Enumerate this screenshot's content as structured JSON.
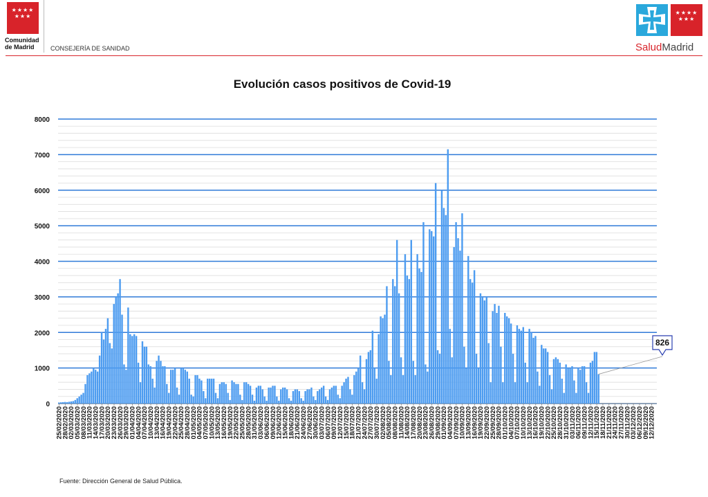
{
  "header": {
    "left_logo_stars": "★★★★\n★★★",
    "left_logo_text_line1": "Comunidad",
    "left_logo_text_line2": "de Madrid",
    "department": "CONSEJERÍA DE SANIDAD",
    "right_logo_part1": "Salud",
    "right_logo_part2": "Madrid",
    "brand_red": "#d8232a",
    "brand_blue": "#2aa8dc"
  },
  "source": "Fuente: Dirección General de Salud Pública.",
  "chart_data": {
    "type": "bar",
    "title": "Evolución casos positivos de Covid-19",
    "xlabel": "",
    "ylabel": "",
    "ylim": [
      0,
      8000
    ],
    "yticks": [
      0,
      1000,
      2000,
      3000,
      4000,
      5000,
      6000,
      7000,
      8000
    ],
    "grid": true,
    "bar_color": "#4d9cf0",
    "gridline_color": "#2f7ad8",
    "x_start": "2020-02-25",
    "x_end": "2020-12-14",
    "tick_labels": [
      "25/02/2020",
      "28/02/2020",
      "02/03/2020",
      "05/03/2020",
      "08/03/2020",
      "11/03/2020",
      "14/03/2020",
      "17/03/2020",
      "20/03/2020",
      "23/03/2020",
      "26/03/2020",
      "29/03/2020",
      "01/04/2020",
      "04/04/2020",
      "07/04/2020",
      "10/04/2020",
      "13/04/2020",
      "16/04/2020",
      "19/04/2020",
      "22/04/2020",
      "25/04/2020",
      "28/04/2020",
      "01/05/2020",
      "04/05/2020",
      "07/05/2020",
      "10/05/2020",
      "13/05/2020",
      "16/05/2020",
      "19/05/2020",
      "22/05/2020",
      "25/05/2020",
      "28/05/2020",
      "31/05/2020",
      "03/06/2020",
      "06/06/2020",
      "09/06/2020",
      "12/06/2020",
      "15/06/2020",
      "18/06/2020",
      "21/06/2020",
      "24/06/2020",
      "27/06/2020",
      "30/06/2020",
      "03/07/2020",
      "06/07/2020",
      "09/07/2020",
      "12/07/2020",
      "15/07/2020",
      "18/07/2020",
      "21/07/2020",
      "24/07/2020",
      "27/07/2020",
      "30/07/2020",
      "02/08/2020",
      "05/08/2020",
      "08/08/2020",
      "11/08/2020",
      "14/08/2020",
      "17/08/2020",
      "20/08/2020",
      "23/08/2020",
      "26/08/2020",
      "29/08/2020",
      "01/09/2020",
      "04/09/2020",
      "07/09/2020",
      "10/09/2020",
      "13/09/2020",
      "16/09/2020",
      "19/09/2020",
      "22/09/2020",
      "25/09/2020",
      "28/09/2020",
      "01/10/2020",
      "04/10/2020",
      "07/10/2020",
      "10/10/2020",
      "13/10/2020",
      "16/10/2020",
      "19/10/2020",
      "22/10/2020",
      "25/10/2020",
      "28/10/2020",
      "31/10/2020",
      "03/11/2020",
      "06/11/2020",
      "09/11/2020",
      "12/11/2020",
      "15/11/2020",
      "18/11/2020",
      "21/11/2020",
      "24/11/2020",
      "27/11/2020",
      "30/11/2020",
      "03/12/2020",
      "06/12/2020",
      "09/12/2020",
      "12/12/2020"
    ],
    "values": [
      30,
      35,
      40,
      45,
      40,
      50,
      60,
      70,
      100,
      150,
      200,
      250,
      300,
      550,
      800,
      850,
      900,
      1000,
      950,
      900,
      1350,
      2000,
      1800,
      2100,
      2400,
      1700,
      1550,
      2800,
      3000,
      3100,
      3500,
      2500,
      1100,
      950,
      2700,
      1950,
      1900,
      1950,
      1900,
      1150,
      600,
      1750,
      1600,
      1600,
      1100,
      1050,
      700,
      450,
      1200,
      1350,
      1200,
      1050,
      1050,
      550,
      300,
      950,
      950,
      1000,
      450,
      250,
      1000,
      1000,
      950,
      900,
      700,
      250,
      200,
      800,
      800,
      700,
      650,
      350,
      150,
      700,
      700,
      700,
      700,
      300,
      150,
      550,
      600,
      600,
      550,
      300,
      100,
      650,
      600,
      550,
      550,
      250,
      100,
      600,
      600,
      550,
      500,
      250,
      80,
      450,
      500,
      500,
      400,
      200,
      80,
      450,
      450,
      500,
      500,
      200,
      80,
      400,
      450,
      450,
      400,
      150,
      80,
      350,
      400,
      400,
      350,
      150,
      80,
      350,
      400,
      400,
      450,
      200,
      100,
      350,
      400,
      450,
      500,
      200,
      100,
      400,
      450,
      500,
      500,
      250,
      150,
      500,
      600,
      700,
      750,
      400,
      250,
      800,
      900,
      1000,
      1350,
      600,
      400,
      1250,
      1450,
      1500,
      2050,
      1000,
      700,
      1950,
      2450,
      2400,
      2500,
      3300,
      1200,
      800,
      3500,
      3300,
      4600,
      3100,
      1300,
      800,
      4200,
      3600,
      3500,
      4600,
      1200,
      800,
      4200,
      3800,
      3700,
      5100,
      1100,
      900,
      4900,
      4850,
      4700,
      6200,
      1500,
      1400,
      6000,
      5500,
      5300,
      7150,
      2100,
      1300,
      4400,
      5100,
      4650,
      4300,
      5350,
      1600,
      1000,
      4150,
      3500,
      3400,
      3750,
      1400,
      1000,
      3100,
      3000,
      2900,
      3000,
      1700,
      600,
      2600,
      2800,
      2550,
      2750,
      1600,
      600,
      2550,
      2450,
      2400,
      2250,
      1400,
      600,
      2200,
      2100,
      2050,
      2150,
      1150,
      600,
      2100,
      2000,
      1850,
      1900,
      900,
      500,
      1650,
      1550,
      1550,
      1450,
      800,
      400,
      1250,
      1300,
      1250,
      1150,
      700,
      300,
      1100,
      1000,
      1000,
      1050,
      650,
      300,
      1000,
      950,
      1050,
      1050,
      600,
      300,
      1150,
      1200,
      1450,
      1450,
      826
    ],
    "annotation": {
      "text": "826"
    }
  }
}
